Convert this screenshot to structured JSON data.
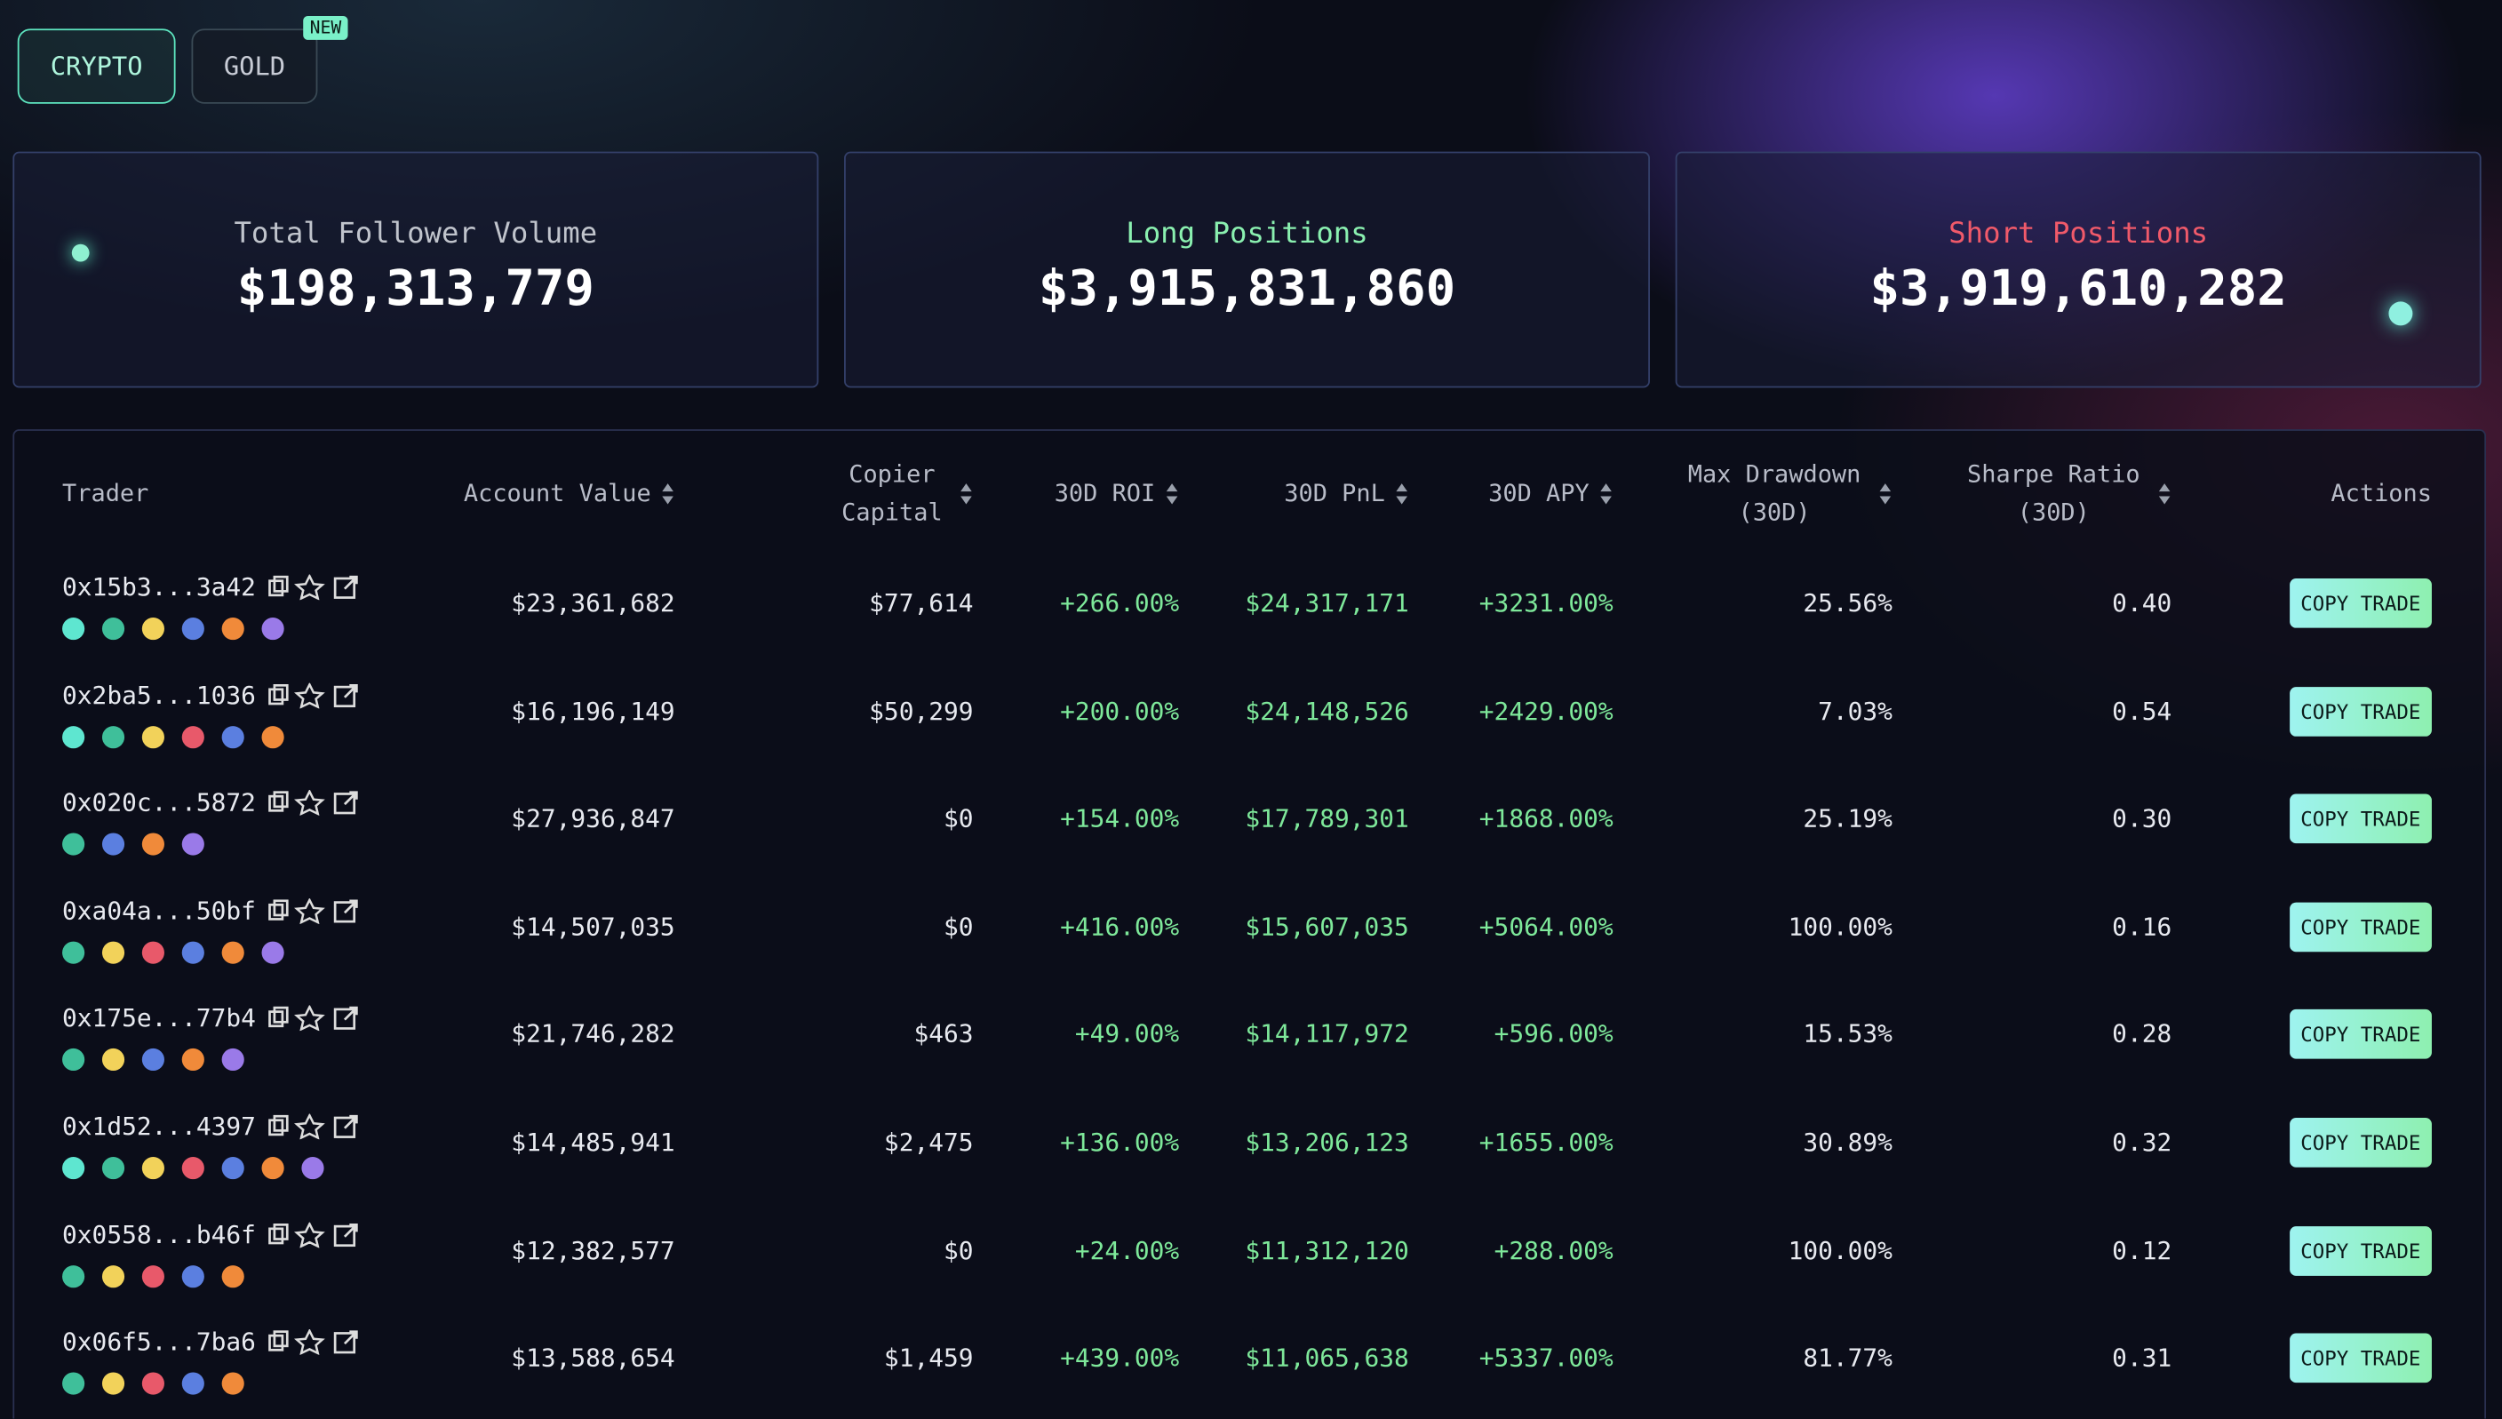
{
  "tabs": [
    {
      "label": "CRYPTO"
    },
    {
      "label": "GOLD",
      "badge": "NEW"
    }
  ],
  "stats": [
    {
      "label": "Total Follower Volume",
      "value": "$198,313,779"
    },
    {
      "label": "Long Positions",
      "value": "$3,915,831,860"
    },
    {
      "label": "Short Positions",
      "value": "$3,919,610,282"
    }
  ],
  "table": {
    "headers": [
      "Trader",
      "Account Value",
      "Copier Capital",
      "30D ROI",
      "30D PnL",
      "30D APY",
      "Max Drawdown (30D)",
      "Sharpe Ratio (30D)",
      "Actions"
    ],
    "rows": [
      [
        "0x15b3...3a42",
        "$23,361,682",
        "$77,614",
        "+266.00%",
        "$24,317,171",
        "+3231.00%",
        "25.56%",
        "0.40",
        "COPY TRADE"
      ],
      [
        "0x2ba5...1036",
        "$16,196,149",
        "$50,299",
        "+200.00%",
        "$24,148,526",
        "+2429.00%",
        "7.03%",
        "0.54",
        "COPY TRADE"
      ],
      [
        "0x020c...5872",
        "$27,936,847",
        "$0",
        "+154.00%",
        "$17,789,301",
        "+1868.00%",
        "25.19%",
        "0.30",
        "COPY TRADE"
      ],
      [
        "0xa04a...50bf",
        "$14,507,035",
        "$0",
        "+416.00%",
        "$15,607,035",
        "+5064.00%",
        "100.00%",
        "0.16",
        "COPY TRADE"
      ],
      [
        "0x175e...77b4",
        "$21,746,282",
        "$463",
        "+49.00%",
        "$14,117,972",
        "+596.00%",
        "15.53%",
        "0.28",
        "COPY TRADE"
      ],
      [
        "0x1d52...4397",
        "$14,485,941",
        "$2,475",
        "+136.00%",
        "$13,206,123",
        "+1655.00%",
        "30.89%",
        "0.32",
        "COPY TRADE"
      ],
      [
        "0x0558...b46f",
        "$12,382,577",
        "$0",
        "+24.00%",
        "$11,312,120",
        "+288.00%",
        "100.00%",
        "0.12",
        "COPY TRADE"
      ],
      [
        "0x06f5...7ba6",
        "$13,588,654",
        "$1,459",
        "+439.00%",
        "$11,065,638",
        "+5337.00%",
        "81.77%",
        "0.31",
        "COPY TRADE"
      ]
    ]
  }
}
